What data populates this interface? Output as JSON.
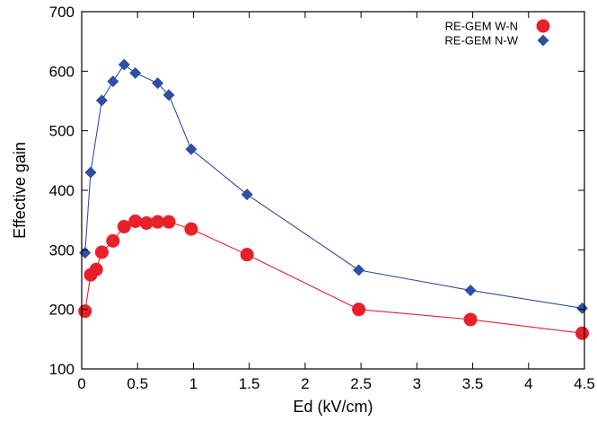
{
  "chart_data": {
    "type": "line",
    "title": "",
    "xlabel": "Ed (kV/cm)",
    "ylabel": "Effective gain",
    "xlim": [
      0,
      4.5
    ],
    "ylim": [
      100,
      700
    ],
    "xticks": [
      "0",
      "0.5",
      "1",
      "1.5",
      "2",
      "2.5",
      "3",
      "3.5",
      "4",
      "4.5"
    ],
    "yticks": [
      "100",
      "200",
      "300",
      "400",
      "500",
      "600",
      "700"
    ],
    "grid": false,
    "legend_position": "top-right",
    "series": [
      {
        "name": "RE-GEM W-N",
        "marker": "circle",
        "color": "#e8202a",
        "x": [
          0.03,
          0.08,
          0.13,
          0.18,
          0.28,
          0.38,
          0.48,
          0.58,
          0.68,
          0.78,
          0.98,
          1.48,
          2.48,
          3.48,
          4.48
        ],
        "y": [
          197,
          258,
          267,
          296,
          315,
          339,
          348,
          345,
          347,
          347,
          335,
          292,
          200,
          183,
          160
        ]
      },
      {
        "name": "RE-GEM N-W",
        "marker": "diamond",
        "color": "#2e4fa3",
        "x": [
          0.03,
          0.08,
          0.18,
          0.28,
          0.38,
          0.48,
          0.68,
          0.78,
          0.98,
          1.48,
          2.48,
          3.48,
          4.48
        ],
        "y": [
          295,
          430,
          551,
          583,
          611,
          597,
          580,
          560,
          469,
          393,
          266,
          232,
          202
        ]
      }
    ]
  }
}
